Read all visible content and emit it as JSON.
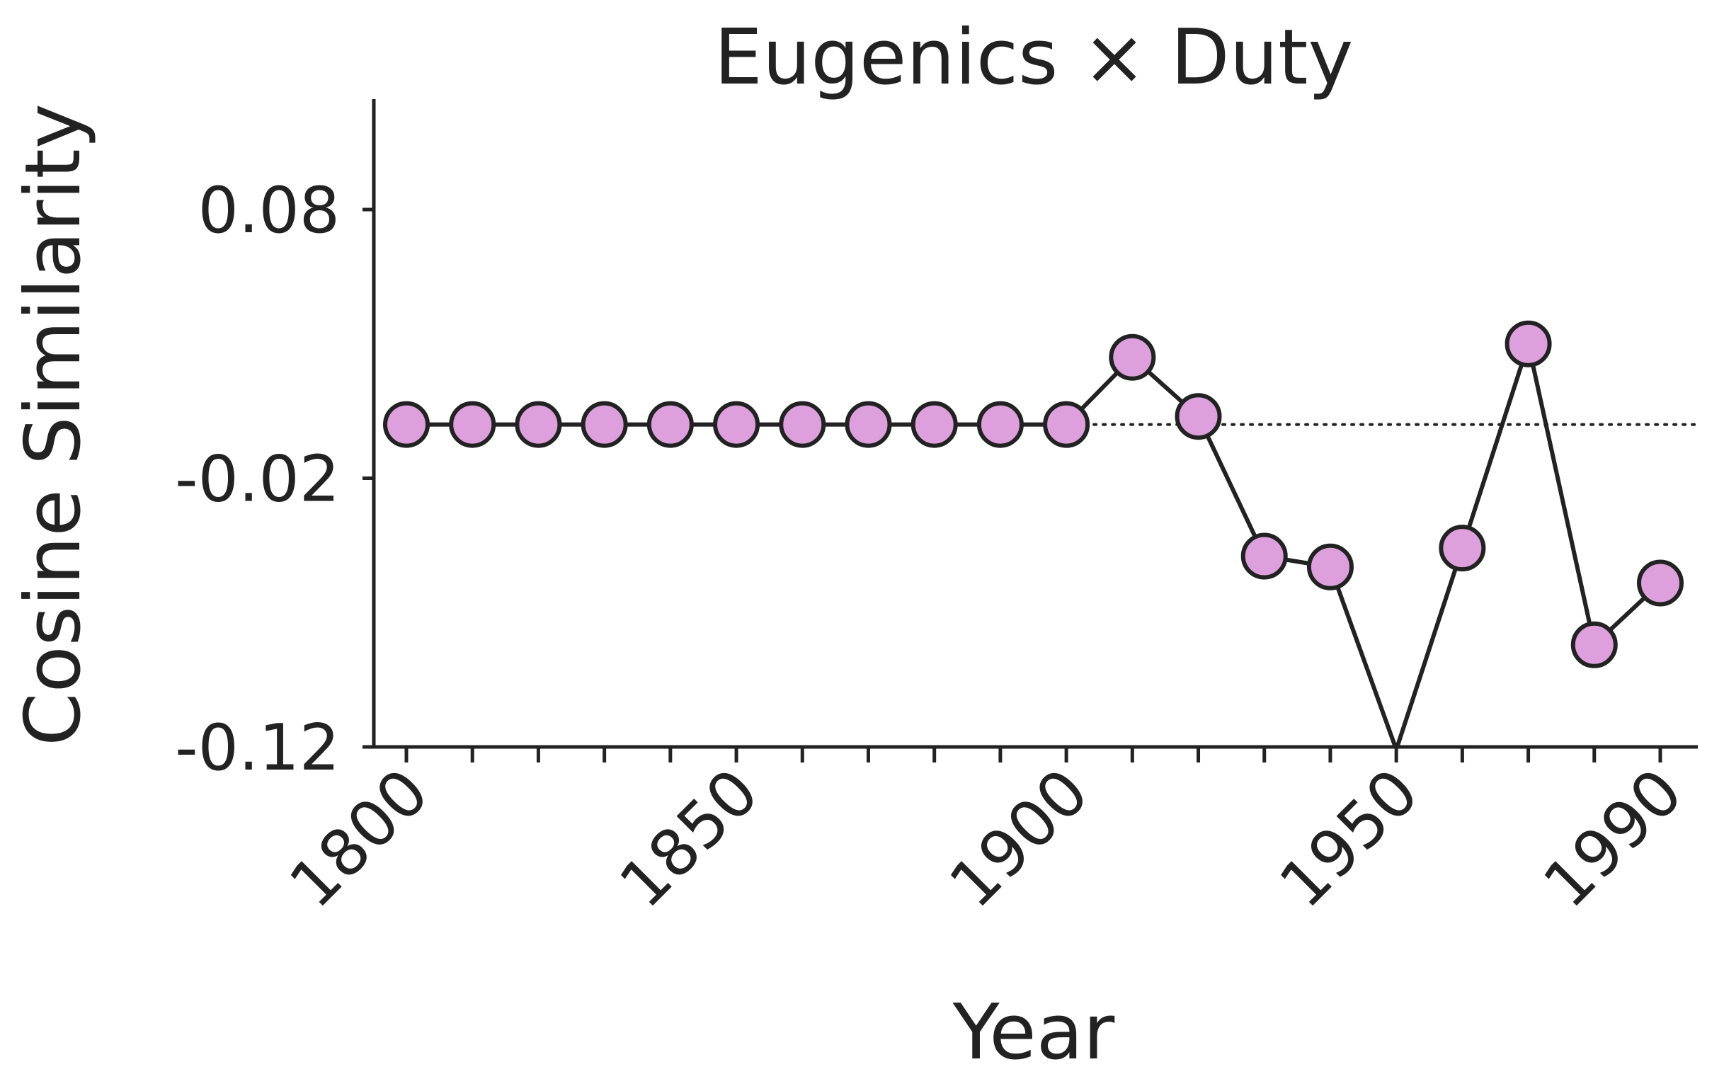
{
  "chart_data": {
    "type": "line",
    "title": "Eugenics × Duty",
    "xlabel": "Year",
    "ylabel": "Cosine Similarity",
    "x": [
      1800,
      1810,
      1820,
      1830,
      1840,
      1850,
      1860,
      1870,
      1880,
      1890,
      1900,
      1910,
      1920,
      1930,
      1940,
      1950,
      1960,
      1970,
      1980,
      1990
    ],
    "series": [
      {
        "values": [
          0.0,
          0.0,
          0.0,
          0.0,
          0.0,
          0.0,
          0.0,
          0.0,
          0.0,
          0.0,
          0.0,
          0.025,
          0.003,
          -0.049,
          -0.053,
          -0.121,
          -0.046,
          0.03,
          -0.082,
          -0.059
        ]
      }
    ],
    "reference_line": {
      "y": 0.0,
      "x_start": 1900,
      "style": "dotted"
    },
    "xlim": [
      1795,
      1995
    ],
    "ylim": [
      -0.12,
      0.12
    ],
    "x_tick_values": [
      1800,
      1810,
      1820,
      1830,
      1840,
      1850,
      1860,
      1870,
      1880,
      1890,
      1900,
      1910,
      1920,
      1930,
      1940,
      1950,
      1960,
      1970,
      1980,
      1990
    ],
    "x_tick_labels": [
      "1800",
      "1850",
      "1900",
      "1950",
      "1990"
    ],
    "x_tick_label_values": [
      1800,
      1850,
      1900,
      1950,
      1990
    ],
    "y_tick_labels": [
      "0.08",
      "-0.02",
      "-0.12"
    ],
    "y_tick_label_values": [
      0.08,
      -0.02,
      -0.12
    ],
    "grid": false,
    "colors": {
      "marker_fill": "#dda0dd",
      "line": "#222222"
    }
  }
}
